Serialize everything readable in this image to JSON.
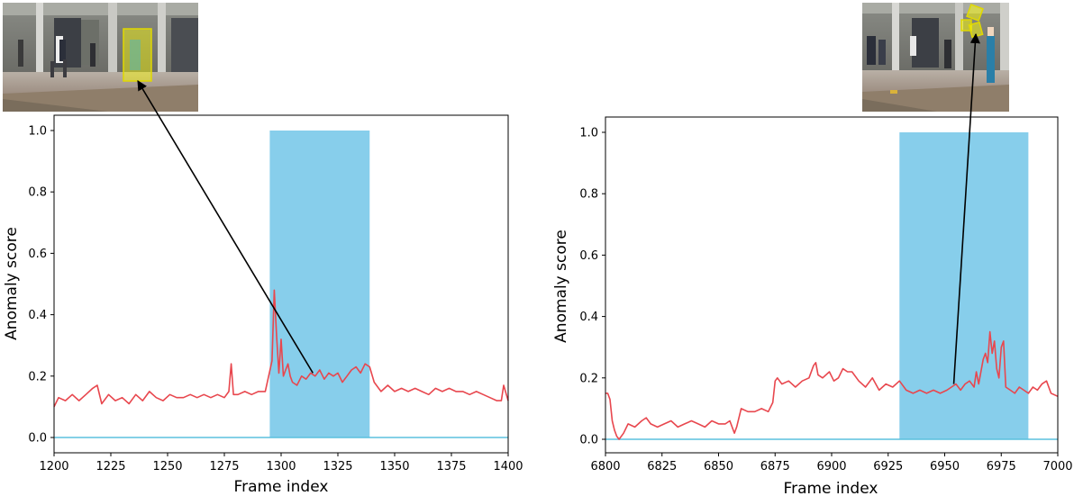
{
  "colors": {
    "anomaly_region": "#87ceeb",
    "score_line": "#e8474e",
    "baseline": "#5bc0de",
    "highlight": "#ffff00",
    "arrow": "#000000"
  },
  "chart_data": [
    {
      "type": "line",
      "title": "",
      "xlabel": "Frame index",
      "ylabel": "Anomaly score",
      "xlim": [
        1200,
        1400
      ],
      "ylim": [
        -0.05,
        1.05
      ],
      "xticks": [
        1200,
        1225,
        1250,
        1275,
        1300,
        1325,
        1350,
        1375,
        1400
      ],
      "yticks": [
        "0.0",
        "0.2",
        "0.4",
        "0.6",
        "0.8",
        "1.0"
      ],
      "grid": false,
      "anomaly_interval": [
        1295,
        1339
      ],
      "baseline_value": 0.0,
      "thumbnail": "pedestrian-scene-with-highlighted-person",
      "arrow_target": {
        "x": 1314,
        "y": 0.21
      },
      "series": [
        {
          "x": [
            1200,
            1202,
            1205,
            1208,
            1211,
            1214,
            1217,
            1219,
            1221,
            1224,
            1227,
            1230,
            1233,
            1236,
            1239,
            1242,
            1245,
            1248,
            1251,
            1254,
            1257,
            1260,
            1263,
            1266,
            1269,
            1272,
            1275,
            1277,
            1278,
            1279,
            1281,
            1284,
            1287,
            1290,
            1293,
            1296,
            1297,
            1298,
            1299,
            1300,
            1301,
            1302,
            1303,
            1304,
            1305,
            1307,
            1309,
            1311,
            1313,
            1315,
            1317,
            1319,
            1321,
            1323,
            1325,
            1327,
            1329,
            1331,
            1333,
            1335,
            1337,
            1339,
            1341,
            1344,
            1347,
            1350,
            1353,
            1356,
            1359,
            1362,
            1365,
            1368,
            1371,
            1374,
            1377,
            1380,
            1383,
            1386,
            1389,
            1392,
            1395,
            1397,
            1398,
            1400
          ],
          "values": [
            0.1,
            0.13,
            0.12,
            0.14,
            0.12,
            0.14,
            0.16,
            0.17,
            0.11,
            0.14,
            0.12,
            0.13,
            0.11,
            0.14,
            0.12,
            0.15,
            0.13,
            0.12,
            0.14,
            0.13,
            0.13,
            0.14,
            0.13,
            0.14,
            0.13,
            0.14,
            0.13,
            0.15,
            0.24,
            0.14,
            0.14,
            0.15,
            0.14,
            0.15,
            0.15,
            0.25,
            0.48,
            0.33,
            0.21,
            0.32,
            0.2,
            0.22,
            0.24,
            0.2,
            0.18,
            0.17,
            0.2,
            0.19,
            0.21,
            0.2,
            0.22,
            0.19,
            0.21,
            0.2,
            0.21,
            0.18,
            0.2,
            0.22,
            0.23,
            0.21,
            0.24,
            0.23,
            0.18,
            0.15,
            0.17,
            0.15,
            0.16,
            0.15,
            0.16,
            0.15,
            0.14,
            0.16,
            0.15,
            0.16,
            0.15,
            0.15,
            0.14,
            0.15,
            0.14,
            0.13,
            0.12,
            0.12,
            0.17,
            0.12
          ]
        }
      ]
    },
    {
      "type": "line",
      "title": "",
      "xlabel": "Frame index",
      "ylabel": "Anomaly score",
      "xlim": [
        6800,
        7000
      ],
      "ylim": [
        -0.05,
        1.05
      ],
      "xticks": [
        6800,
        6825,
        6850,
        6875,
        6900,
        6925,
        6950,
        6975,
        7000
      ],
      "yticks": [
        "0.0",
        "0.2",
        "0.4",
        "0.6",
        "0.8",
        "1.0"
      ],
      "grid": false,
      "anomaly_interval": [
        6930,
        6987
      ],
      "baseline_value": 0.0,
      "thumbnail": "pedestrian-scene-with-highlighted-objects",
      "arrow_target": {
        "x": 6954,
        "y": 0.18
      },
      "series": [
        {
          "x": [
            6800,
            6801,
            6802,
            6803,
            6804,
            6805,
            6806,
            6808,
            6810,
            6813,
            6816,
            6818,
            6820,
            6823,
            6826,
            6829,
            6832,
            6835,
            6838,
            6841,
            6844,
            6847,
            6850,
            6853,
            6855,
            6857,
            6858,
            6860,
            6863,
            6866,
            6869,
            6872,
            6874,
            6875,
            6876,
            6878,
            6881,
            6884,
            6887,
            6890,
            6892,
            6893,
            6894,
            6896,
            6899,
            6901,
            6903,
            6905,
            6907,
            6909,
            6912,
            6915,
            6918,
            6921,
            6924,
            6927,
            6930,
            6933,
            6936,
            6939,
            6942,
            6945,
            6948,
            6951,
            6953,
            6955,
            6957,
            6959,
            6961,
            6963,
            6964,
            6965,
            6967,
            6968,
            6969,
            6970,
            6971,
            6972,
            6973,
            6974,
            6975,
            6976,
            6977,
            6979,
            6981,
            6983,
            6985,
            6987,
            6989,
            6991,
            6993,
            6995,
            6997,
            7000
          ],
          "values": [
            0.15,
            0.15,
            0.13,
            0.06,
            0.03,
            0.01,
            0.0,
            0.02,
            0.05,
            0.04,
            0.06,
            0.07,
            0.05,
            0.04,
            0.05,
            0.06,
            0.04,
            0.05,
            0.06,
            0.05,
            0.04,
            0.06,
            0.05,
            0.05,
            0.06,
            0.02,
            0.04,
            0.1,
            0.09,
            0.09,
            0.1,
            0.09,
            0.12,
            0.19,
            0.2,
            0.18,
            0.19,
            0.17,
            0.19,
            0.2,
            0.24,
            0.25,
            0.21,
            0.2,
            0.22,
            0.19,
            0.2,
            0.23,
            0.22,
            0.22,
            0.19,
            0.17,
            0.2,
            0.16,
            0.18,
            0.17,
            0.19,
            0.16,
            0.15,
            0.16,
            0.15,
            0.16,
            0.15,
            0.16,
            0.17,
            0.18,
            0.16,
            0.18,
            0.19,
            0.17,
            0.22,
            0.18,
            0.26,
            0.28,
            0.25,
            0.35,
            0.28,
            0.32,
            0.23,
            0.2,
            0.3,
            0.32,
            0.17,
            0.16,
            0.15,
            0.17,
            0.16,
            0.15,
            0.17,
            0.16,
            0.18,
            0.19,
            0.15,
            0.14
          ]
        }
      ]
    }
  ]
}
